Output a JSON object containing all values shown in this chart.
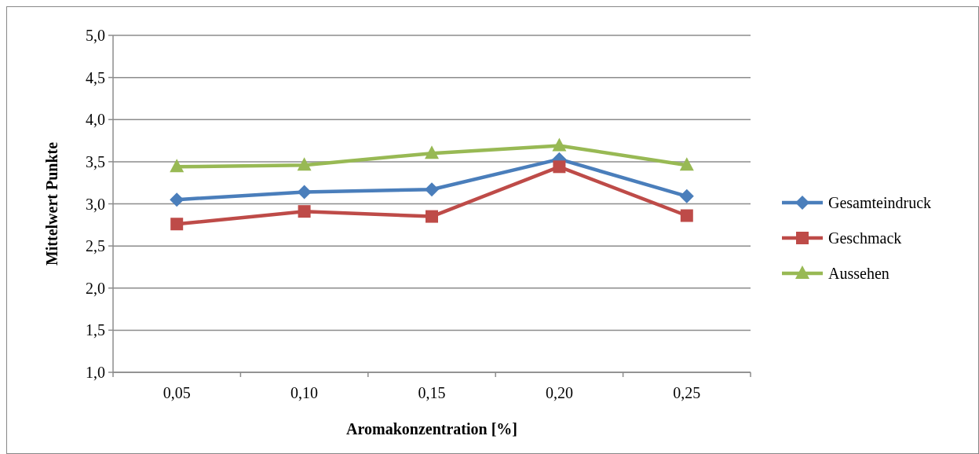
{
  "chart_data": {
    "type": "line",
    "xlabel": "Aromakonzentration [%]",
    "ylabel": "Mittelwert Punkte",
    "categories": [
      "0,05",
      "0,10",
      "0,15",
      "0,20",
      "0,25"
    ],
    "series": [
      {
        "name": "Gesamteindruck",
        "color": "#4a7ebb",
        "marker": "diamond",
        "values": [
          3.05,
          3.14,
          3.17,
          3.53,
          3.09
        ]
      },
      {
        "name": "Geschmack",
        "color": "#be4b48",
        "marker": "square",
        "values": [
          2.76,
          2.91,
          2.85,
          3.44,
          2.86
        ]
      },
      {
        "name": "Aussehen",
        "color": "#98b954",
        "marker": "triangle",
        "values": [
          3.44,
          3.46,
          3.6,
          3.69,
          3.46
        ]
      }
    ],
    "ylim": [
      1,
      5
    ],
    "yticks": [
      {
        "value": 1,
        "label": "1,0"
      },
      {
        "value": 1.5,
        "label": "1,5"
      },
      {
        "value": 2,
        "label": "2,0"
      },
      {
        "value": 2.5,
        "label": "2,5"
      },
      {
        "value": 3,
        "label": "3,0"
      },
      {
        "value": 3.5,
        "label": "3,5"
      },
      {
        "value": 4,
        "label": "4,0"
      },
      {
        "value": 4.5,
        "label": "4,5"
      },
      {
        "value": 5,
        "label": "5,0"
      }
    ],
    "grid": "y",
    "legend": "right",
    "line_style": "solid"
  }
}
